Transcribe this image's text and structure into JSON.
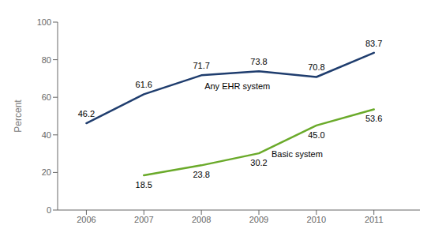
{
  "chart_data": {
    "type": "line",
    "x": [
      2006,
      2007,
      2008,
      2009,
      2010,
      2011
    ],
    "series": [
      {
        "name": "Any EHR system",
        "color": "#1f3d6e",
        "values": [
          46.2,
          61.6,
          71.7,
          73.8,
          70.8,
          83.7
        ]
      },
      {
        "name": "Basic system",
        "color": "#6aaa2a",
        "values": [
          null,
          18.5,
          23.8,
          30.2,
          45.0,
          53.6
        ],
        "value_labels": [
          null,
          "18.5",
          "23.8",
          "30.2",
          "45.0",
          "53.6"
        ]
      }
    ],
    "ylabel": "Percent",
    "xlim": [
      2005.5,
      2011.8
    ],
    "xticks": [
      2006,
      2007,
      2008,
      2009,
      2010,
      2011
    ],
    "ylim": [
      0,
      100
    ],
    "yticks": [
      0,
      20,
      40,
      60,
      80,
      100
    ],
    "data_labels": true,
    "grid": false
  }
}
